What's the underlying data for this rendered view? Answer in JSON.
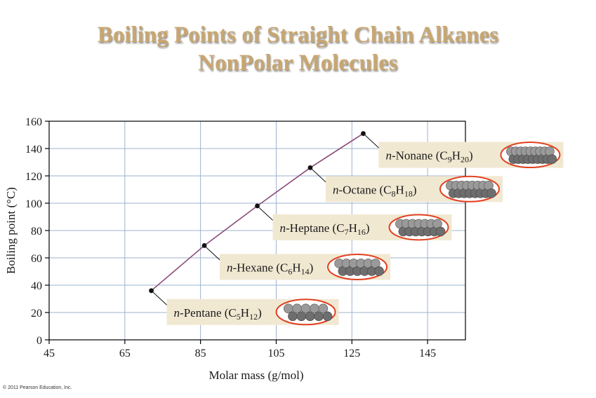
{
  "title": {
    "line1": "Boiling Points of Straight Chain Alkanes",
    "line2": "NonPolar Molecules"
  },
  "copyright": "© 2011 Pearson Education, Inc.",
  "colors": {
    "title": "#c8a670",
    "line": "#8b4a78",
    "grid": "#9db3cf",
    "label_box": "#f1e8d2",
    "molecule_ring": "#e2401f"
  },
  "chart_data": {
    "type": "line",
    "xlabel": "Molar mass (g/mol)",
    "ylabel": "Boiling point (°C)",
    "xlim": [
      45,
      155
    ],
    "ylim": [
      0,
      160
    ],
    "xticks": [
      45,
      65,
      85,
      105,
      125,
      145
    ],
    "yticks": [
      0,
      20,
      40,
      60,
      80,
      100,
      120,
      140,
      160
    ],
    "grid": true,
    "points": [
      {
        "x": 72,
        "y": 36,
        "italic": "n",
        "name": "-Pentane (C",
        "c": "5",
        "mid": "H",
        "h": "12",
        "end": ")"
      },
      {
        "x": 86,
        "y": 69,
        "italic": "n",
        "name": "-Hexane (C",
        "c": "6",
        "mid": "H",
        "h": "14",
        "end": ")"
      },
      {
        "x": 100,
        "y": 98,
        "italic": "n",
        "name": "-Heptane (C",
        "c": "7",
        "mid": "H",
        "h": "16",
        "end": ")"
      },
      {
        "x": 114,
        "y": 126,
        "italic": "n",
        "name": "-Octane (C",
        "c": "8",
        "mid": "H",
        "h": "18",
        "end": ")"
      },
      {
        "x": 128,
        "y": 151,
        "italic": "n",
        "name": "-Nonane (C",
        "c": "9",
        "mid": "H",
        "h": "20",
        "end": ")"
      }
    ]
  }
}
